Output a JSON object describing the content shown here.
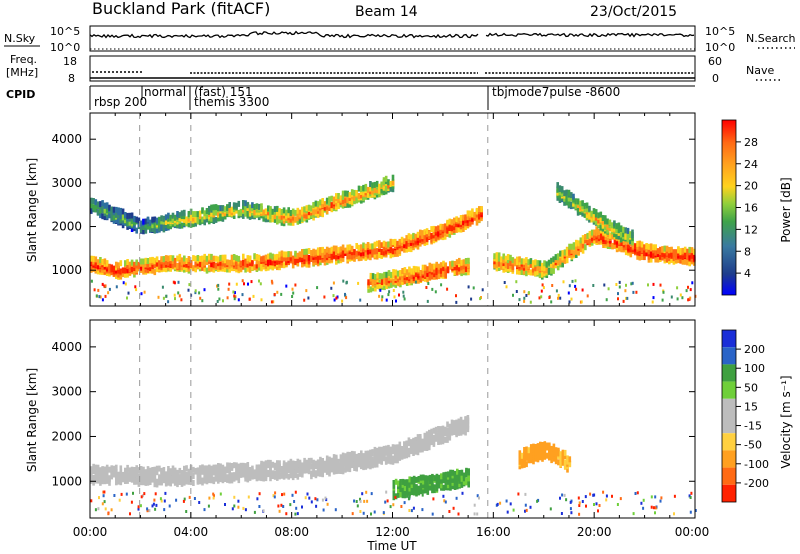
{
  "header": {
    "station": "Buckland Park (fitACF)",
    "beam": "Beam 14",
    "date": "23/Oct/2015"
  },
  "noise_panel": {
    "left_label": "N.Sky",
    "left_ticks": [
      "10^5",
      "10^0"
    ],
    "right_label": "N.Search",
    "right_ticks": [
      "10^5",
      "10^0"
    ]
  },
  "freq_panel": {
    "left_label_1": "Freq.",
    "left_label_2": "[MHz]",
    "left_ticks": [
      "18",
      "8"
    ],
    "right_label": "Nave",
    "right_ticks": [
      "60",
      "0"
    ]
  },
  "cpid_panel": {
    "label": "CPID",
    "modes": [
      "rbsp 200",
      "normal",
      "(fast) 151",
      "themis 3300",
      "tbjmode7pulse -8600"
    ]
  },
  "axes": {
    "ylabel": "Slant Range [km]",
    "xlabel": "Time UT",
    "xticks": [
      "00:00",
      "04:00",
      "08:00",
      "12:00",
      "16:00",
      "20:00",
      "00:00"
    ],
    "yticks": [
      "1000",
      "2000",
      "3000",
      "4000"
    ]
  },
  "power_colorbar": {
    "label": "Power [dB]",
    "ticks": [
      "28",
      "24",
      "20",
      "16",
      "12",
      "8",
      "4"
    ],
    "colors": [
      "#0000ff",
      "#1e3c8c",
      "#2e6fa0",
      "#3a8a6e",
      "#3fa34a",
      "#8fcf3c",
      "#ffd21e",
      "#ffa01e",
      "#ff6a14",
      "#ff2a00",
      "#ff0000"
    ]
  },
  "velocity_colorbar": {
    "label": "Velocity [m s⁻¹]",
    "ticks": [
      "200",
      "100",
      "50",
      "15",
      "-15",
      "-50",
      "-100",
      "-200"
    ],
    "colors": [
      "#1a2ed8",
      "#2a64c8",
      "#3fa040",
      "#6fcf3a",
      "#bdbdbd",
      "#bdbdbd",
      "#ffd040",
      "#ffa020",
      "#ff6a14",
      "#ff2200"
    ]
  },
  "chart_data": [
    {
      "type": "heatmap",
      "title": "Power",
      "xlabel": "Time UT",
      "ylabel": "Slant Range [km]",
      "xlim": [
        0,
        24
      ],
      "ylim": [
        180,
        4600
      ],
      "value_range_dB": [
        0,
        30
      ],
      "bands": [
        {
          "desc": "near-range strong band",
          "t": [
            0,
            1,
            3,
            6,
            9,
            12,
            14,
            15.5
          ],
          "range_km": [
            1150,
            1000,
            1150,
            1150,
            1300,
            1500,
            1900,
            2300
          ],
          "power_dB": [
            28,
            28,
            26,
            26,
            28,
            28,
            28,
            28
          ]
        },
        {
          "desc": "mid band",
          "t": [
            0,
            2,
            4,
            6,
            8,
            10,
            12
          ],
          "range_km": [
            2500,
            2000,
            2200,
            2400,
            2200,
            2600,
            3000
          ],
          "power_dB": [
            14,
            12,
            20,
            18,
            24,
            24,
            20
          ]
        },
        {
          "desc": "low range descending echoes",
          "t": [
            11,
            12,
            13,
            14,
            15
          ],
          "range_km": [
            700,
            800,
            900,
            1000,
            1100
          ],
          "power_dB": [
            24,
            26,
            28,
            28,
            26
          ]
        },
        {
          "desc": "evening band",
          "t": [
            16,
            17,
            18,
            19,
            20,
            22,
            24
          ],
          "range_km": [
            1200,
            1100,
            1000,
            1400,
            1800,
            1400,
            1300
          ],
          "power_dB": [
            24,
            26,
            22,
            24,
            28,
            28,
            28
          ]
        },
        {
          "desc": "rising arc",
          "t": [
            18.5,
            19.5,
            20.5,
            21.5
          ],
          "range_km": [
            2800,
            2400,
            2000,
            1700
          ],
          "power_dB": [
            16,
            20,
            20,
            18
          ]
        }
      ]
    },
    {
      "type": "heatmap",
      "title": "Velocity",
      "xlabel": "Time UT",
      "ylabel": "Slant Range [km]",
      "xlim": [
        0,
        24
      ],
      "ylim": [
        180,
        4600
      ],
      "value_range_ms": [
        -250,
        250
      ],
      "bands": [
        {
          "desc": "ground scatter near zero",
          "t": [
            0,
            3,
            6,
            9,
            12,
            15
          ],
          "range_km": [
            1150,
            1100,
            1200,
            1300,
            1600,
            2300
          ],
          "velocity_ms": [
            0,
            0,
            0,
            0,
            0,
            0
          ]
        },
        {
          "desc": "negative velocity patch",
          "t": [
            17,
            18,
            19
          ],
          "range_km": [
            1500,
            1700,
            1400
          ],
          "velocity_ms": [
            -60,
            -70,
            -50
          ]
        },
        {
          "desc": "positive velocity band",
          "t": [
            12,
            13,
            14,
            15
          ],
          "range_km": [
            800,
            900,
            1000,
            1100
          ],
          "velocity_ms": [
            40,
            40,
            40,
            40
          ]
        }
      ]
    }
  ]
}
